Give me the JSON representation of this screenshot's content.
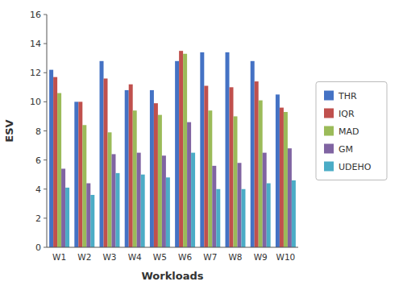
{
  "chart_data": {
    "type": "bar",
    "xlabel": "Workloads",
    "ylabel": "ESV",
    "categories": [
      "W1",
      "W2",
      "W3",
      "W4",
      "W5",
      "W6",
      "W7",
      "W8",
      "W9",
      "W10"
    ],
    "series": [
      {
        "name": "THR",
        "color": "#4472C4",
        "values": [
          12.2,
          10.0,
          12.8,
          10.8,
          10.8,
          12.8,
          13.4,
          13.4,
          12.8,
          10.5
        ]
      },
      {
        "name": "IQR",
        "color": "#C0504D",
        "values": [
          11.7,
          10.0,
          11.6,
          11.2,
          9.9,
          13.5,
          11.1,
          11.0,
          11.4,
          9.6
        ]
      },
      {
        "name": "MAD",
        "color": "#9BBB59",
        "values": [
          10.6,
          8.4,
          7.9,
          9.4,
          9.1,
          13.3,
          9.4,
          9.0,
          10.1,
          9.3
        ]
      },
      {
        "name": "GM",
        "color": "#8064A2",
        "values": [
          5.4,
          4.4,
          6.4,
          6.5,
          6.3,
          8.6,
          5.6,
          5.8,
          6.5,
          6.8
        ]
      },
      {
        "name": "UDEHO",
        "color": "#4BACC6",
        "values": [
          4.1,
          3.6,
          5.1,
          5.0,
          4.8,
          6.5,
          4.0,
          4.0,
          4.4,
          4.6
        ]
      }
    ],
    "ylim": [
      0,
      16
    ],
    "yticks": [
      0,
      2,
      4,
      6,
      8,
      10,
      12,
      14,
      16
    ],
    "grid": false,
    "legend": "right"
  }
}
